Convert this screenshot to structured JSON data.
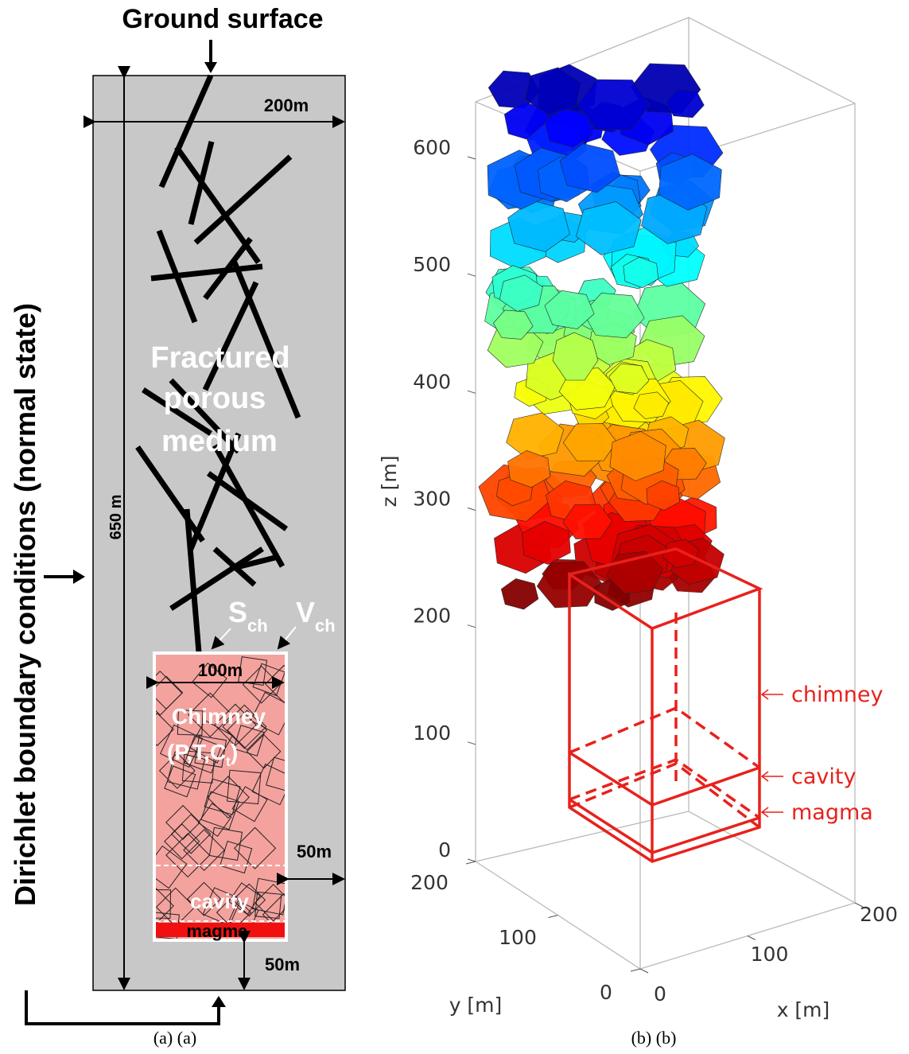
{
  "panel_a": {
    "ground_label": "Ground surface",
    "width_label": "200m",
    "height_label": "650 m",
    "boundary_label": "Dirichlet boundary conditions (normal state)",
    "medium_label": [
      "Fractured",
      "porous",
      "medium"
    ],
    "surface_label": {
      "main": "S",
      "sub": "ch"
    },
    "volume_label": {
      "main": "V",
      "sub": "ch"
    },
    "chimney_width_label": "100m",
    "chimney_label": "Chimney",
    "chimney_vars": {
      "main": "(P,T,C",
      "sub": "t",
      "close": ")"
    },
    "side_gap_label": "50m",
    "cavity_label": "cavity",
    "magma_label": "magma",
    "bottom_gap_label": "50m",
    "caption": "(a) (a)"
  },
  "panel_b": {
    "z_ticks": [
      0,
      100,
      200,
      300,
      400,
      500,
      600
    ],
    "z_label": "z [m]",
    "y_ticks": [
      0,
      100,
      200
    ],
    "y_label": "y [m]",
    "x_ticks": [
      0,
      100,
      200
    ],
    "x_label": "x [m]",
    "annotations": [
      "chimney",
      "cavity",
      "magma"
    ],
    "caption": "(b) (b)"
  }
}
